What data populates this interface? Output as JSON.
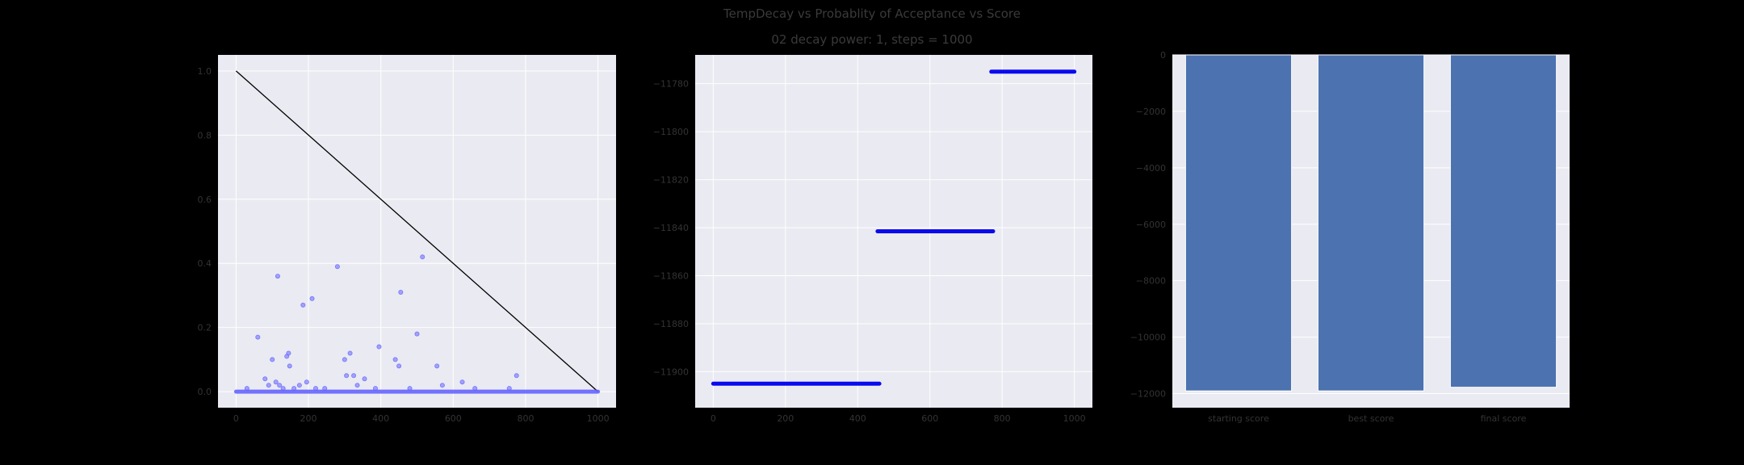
{
  "figure": {
    "title": "TempDecay vs Probablity of Acceptance vs Score",
    "subtitle": "02 decay power: 1, steps = 1000",
    "background": "#000000",
    "axes_facecolor": "#eaeaf2",
    "grid_color": "#ffffff"
  },
  "chart_data": [
    {
      "type": "scatter",
      "title": "",
      "xlabel": "",
      "ylabel": "",
      "xlim": [
        -50,
        1050
      ],
      "ylim": [
        -0.05,
        1.05
      ],
      "xticks": [
        0,
        200,
        400,
        600,
        800,
        1000
      ],
      "yticks": [
        0.0,
        0.2,
        0.4,
        0.6,
        0.8,
        1.0
      ],
      "ytick_labels": [
        "0.0",
        "0.2",
        "0.4",
        "0.6",
        "0.8",
        "1.0"
      ],
      "grid": true,
      "series": [
        {
          "kind": "line",
          "color": "#000000",
          "x": [
            0,
            1000
          ],
          "y": [
            1.0,
            0.0
          ]
        },
        {
          "kind": "scatter",
          "color": "#6464ff",
          "baseline": {
            "x_start": 0,
            "x_end": 1000,
            "y": 0.0
          },
          "points": [
            [
              30,
              0.01
            ],
            [
              60,
              0.17
            ],
            [
              80,
              0.04
            ],
            [
              90,
              0.02
            ],
            [
              100,
              0.1
            ],
            [
              110,
              0.03
            ],
            [
              115,
              0.36
            ],
            [
              120,
              0.02
            ],
            [
              130,
              0.01
            ],
            [
              140,
              0.11
            ],
            [
              145,
              0.12
            ],
            [
              148,
              0.08
            ],
            [
              160,
              0.01
            ],
            [
              175,
              0.02
            ],
            [
              185,
              0.27
            ],
            [
              195,
              0.03
            ],
            [
              210,
              0.29
            ],
            [
              220,
              0.01
            ],
            [
              245,
              0.01
            ],
            [
              280,
              0.39
            ],
            [
              300,
              0.1
            ],
            [
              305,
              0.05
            ],
            [
              315,
              0.12
            ],
            [
              325,
              0.05
            ],
            [
              335,
              0.02
            ],
            [
              355,
              0.04
            ],
            [
              385,
              0.01
            ],
            [
              395,
              0.14
            ],
            [
              440,
              0.1
            ],
            [
              450,
              0.08
            ],
            [
              455,
              0.31
            ],
            [
              480,
              0.01
            ],
            [
              500,
              0.18
            ],
            [
              515,
              0.42
            ],
            [
              555,
              0.08
            ],
            [
              570,
              0.02
            ],
            [
              625,
              0.03
            ],
            [
              660,
              0.01
            ],
            [
              755,
              0.01
            ],
            [
              775,
              0.05
            ]
          ]
        }
      ]
    },
    {
      "type": "scatter",
      "title": "",
      "xlabel": "",
      "ylabel": "",
      "xlim": [
        -50,
        1050
      ],
      "ylim": [
        -11915,
        -11768
      ],
      "xticks": [
        0,
        200,
        400,
        600,
        800,
        1000
      ],
      "yticks": [
        -11900,
        -11880,
        -11860,
        -11840,
        -11820,
        -11800,
        -11780
      ],
      "ytick_labels": [
        "−11900",
        "−11880",
        "−11860",
        "−11840",
        "−11820",
        "−11800",
        "−11780"
      ],
      "grid": true,
      "series": [
        {
          "kind": "segments",
          "color": "#0a0aee",
          "segments": [
            {
              "x_start": 0,
              "x_end": 460,
              "y": -11905
            },
            {
              "x_start": 455,
              "x_end": 775,
              "y": -11841.5
            },
            {
              "x_start": 770,
              "x_end": 1000,
              "y": -11775
            }
          ]
        }
      ]
    },
    {
      "type": "bar",
      "title": "",
      "xlabel": "",
      "ylabel": "",
      "categories": [
        "starting score",
        "best score",
        "final score"
      ],
      "values": [
        -11905,
        -11905,
        -11775
      ],
      "color": "#4c72b0",
      "ylim": [
        -12500,
        0
      ],
      "yticks": [
        0,
        -2000,
        -4000,
        -6000,
        -8000,
        -10000,
        -12000
      ],
      "ytick_labels": [
        "0",
        "−2000",
        "−4000",
        "−6000",
        "−8000",
        "−10000",
        "−12000"
      ],
      "grid": true
    }
  ]
}
